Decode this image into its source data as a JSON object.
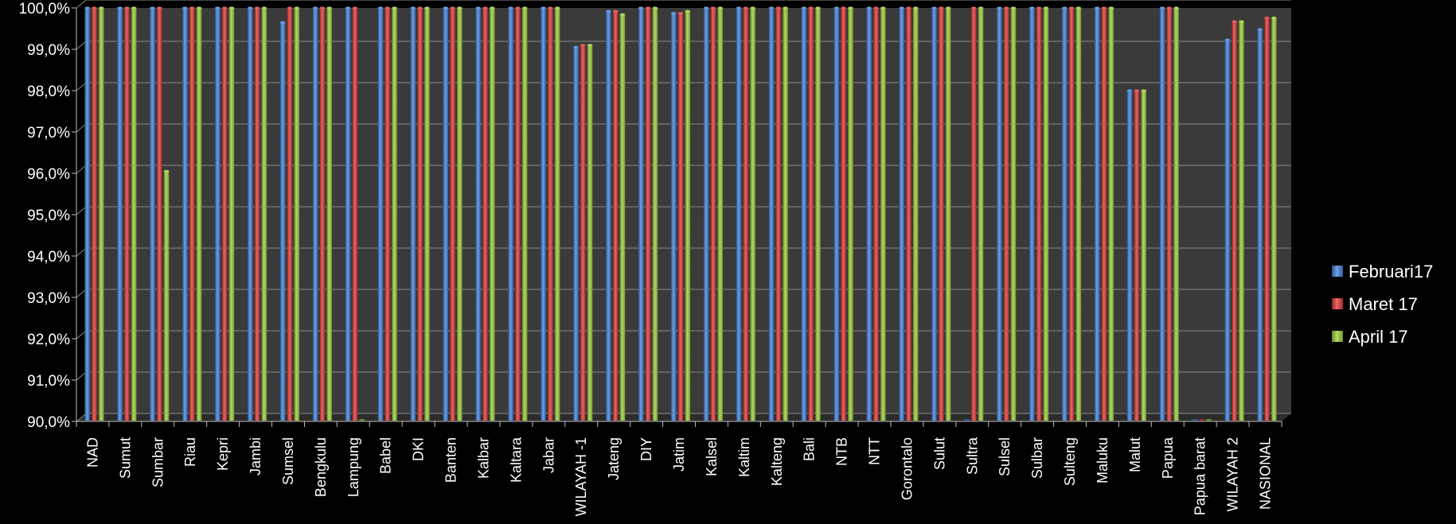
{
  "chart_data": {
    "type": "bar",
    "title": "",
    "xlabel": "",
    "ylabel": "",
    "ylim": [
      90.0,
      100.0
    ],
    "yticks": [
      "90,0%",
      "91,0%",
      "92,0%",
      "93,0%",
      "94,0%",
      "95,0%",
      "96,0%",
      "97,0%",
      "98,0%",
      "99,0%",
      "100,0%"
    ],
    "grid": true,
    "legend_position": "right",
    "categories": [
      "NAD",
      "Sumut",
      "Sumbar",
      "Riau",
      "Kepri",
      "Jambi",
      "Sumsel",
      "Bengkulu",
      "Lampung",
      "Babel",
      "DKI",
      "Banten",
      "Kalbar",
      "Kaltara",
      "Jabar",
      "WILAYAH -1",
      "Jateng",
      "DIY",
      "Jatim",
      "Kalsel",
      "Kaltim",
      "Kalteng",
      "Bali",
      "NTB",
      "NTT",
      "Gorontalo",
      "Sulut",
      "Sultra",
      "Sulsel",
      "Sulbar",
      "Sulteng",
      "Maluku",
      "Malut",
      "Papua",
      "Papua barat",
      "WILAYAH 2",
      "NASIONAL"
    ],
    "series": [
      {
        "name": "Februari17",
        "color": "#3f7fd9",
        "values": [
          100.0,
          100.0,
          100.0,
          100.0,
          100.0,
          100.0,
          99.65,
          100.0,
          100.0,
          100.0,
          100.0,
          100.0,
          100.0,
          100.0,
          100.0,
          99.05,
          99.92,
          100.0,
          99.87,
          100.0,
          100.0,
          100.0,
          100.0,
          100.0,
          100.0,
          100.0,
          100.0,
          90.0,
          100.0,
          100.0,
          100.0,
          100.0,
          98.0,
          100.0,
          90.0,
          99.23,
          99.48
        ]
      },
      {
        "name": "Maret 17",
        "color": "#e03434",
        "values": [
          100.0,
          100.0,
          100.0,
          100.0,
          100.0,
          100.0,
          100.0,
          100.0,
          100.0,
          100.0,
          100.0,
          100.0,
          100.0,
          100.0,
          100.0,
          99.1,
          99.92,
          100.0,
          99.87,
          100.0,
          100.0,
          100.0,
          100.0,
          100.0,
          100.0,
          100.0,
          100.0,
          100.0,
          100.0,
          100.0,
          100.0,
          100.0,
          98.0,
          100.0,
          90.0,
          99.67,
          99.76
        ]
      },
      {
        "name": "April 17",
        "color": "#9acc36",
        "values": [
          100.0,
          100.0,
          96.05,
          100.0,
          100.0,
          100.0,
          100.0,
          100.0,
          90.0,
          100.0,
          100.0,
          100.0,
          100.0,
          100.0,
          100.0,
          99.1,
          99.84,
          100.0,
          99.92,
          100.0,
          100.0,
          100.0,
          100.0,
          100.0,
          100.0,
          100.0,
          100.0,
          100.0,
          100.0,
          100.0,
          100.0,
          100.0,
          98.0,
          100.0,
          90.0,
          99.67,
          99.76
        ]
      }
    ]
  }
}
